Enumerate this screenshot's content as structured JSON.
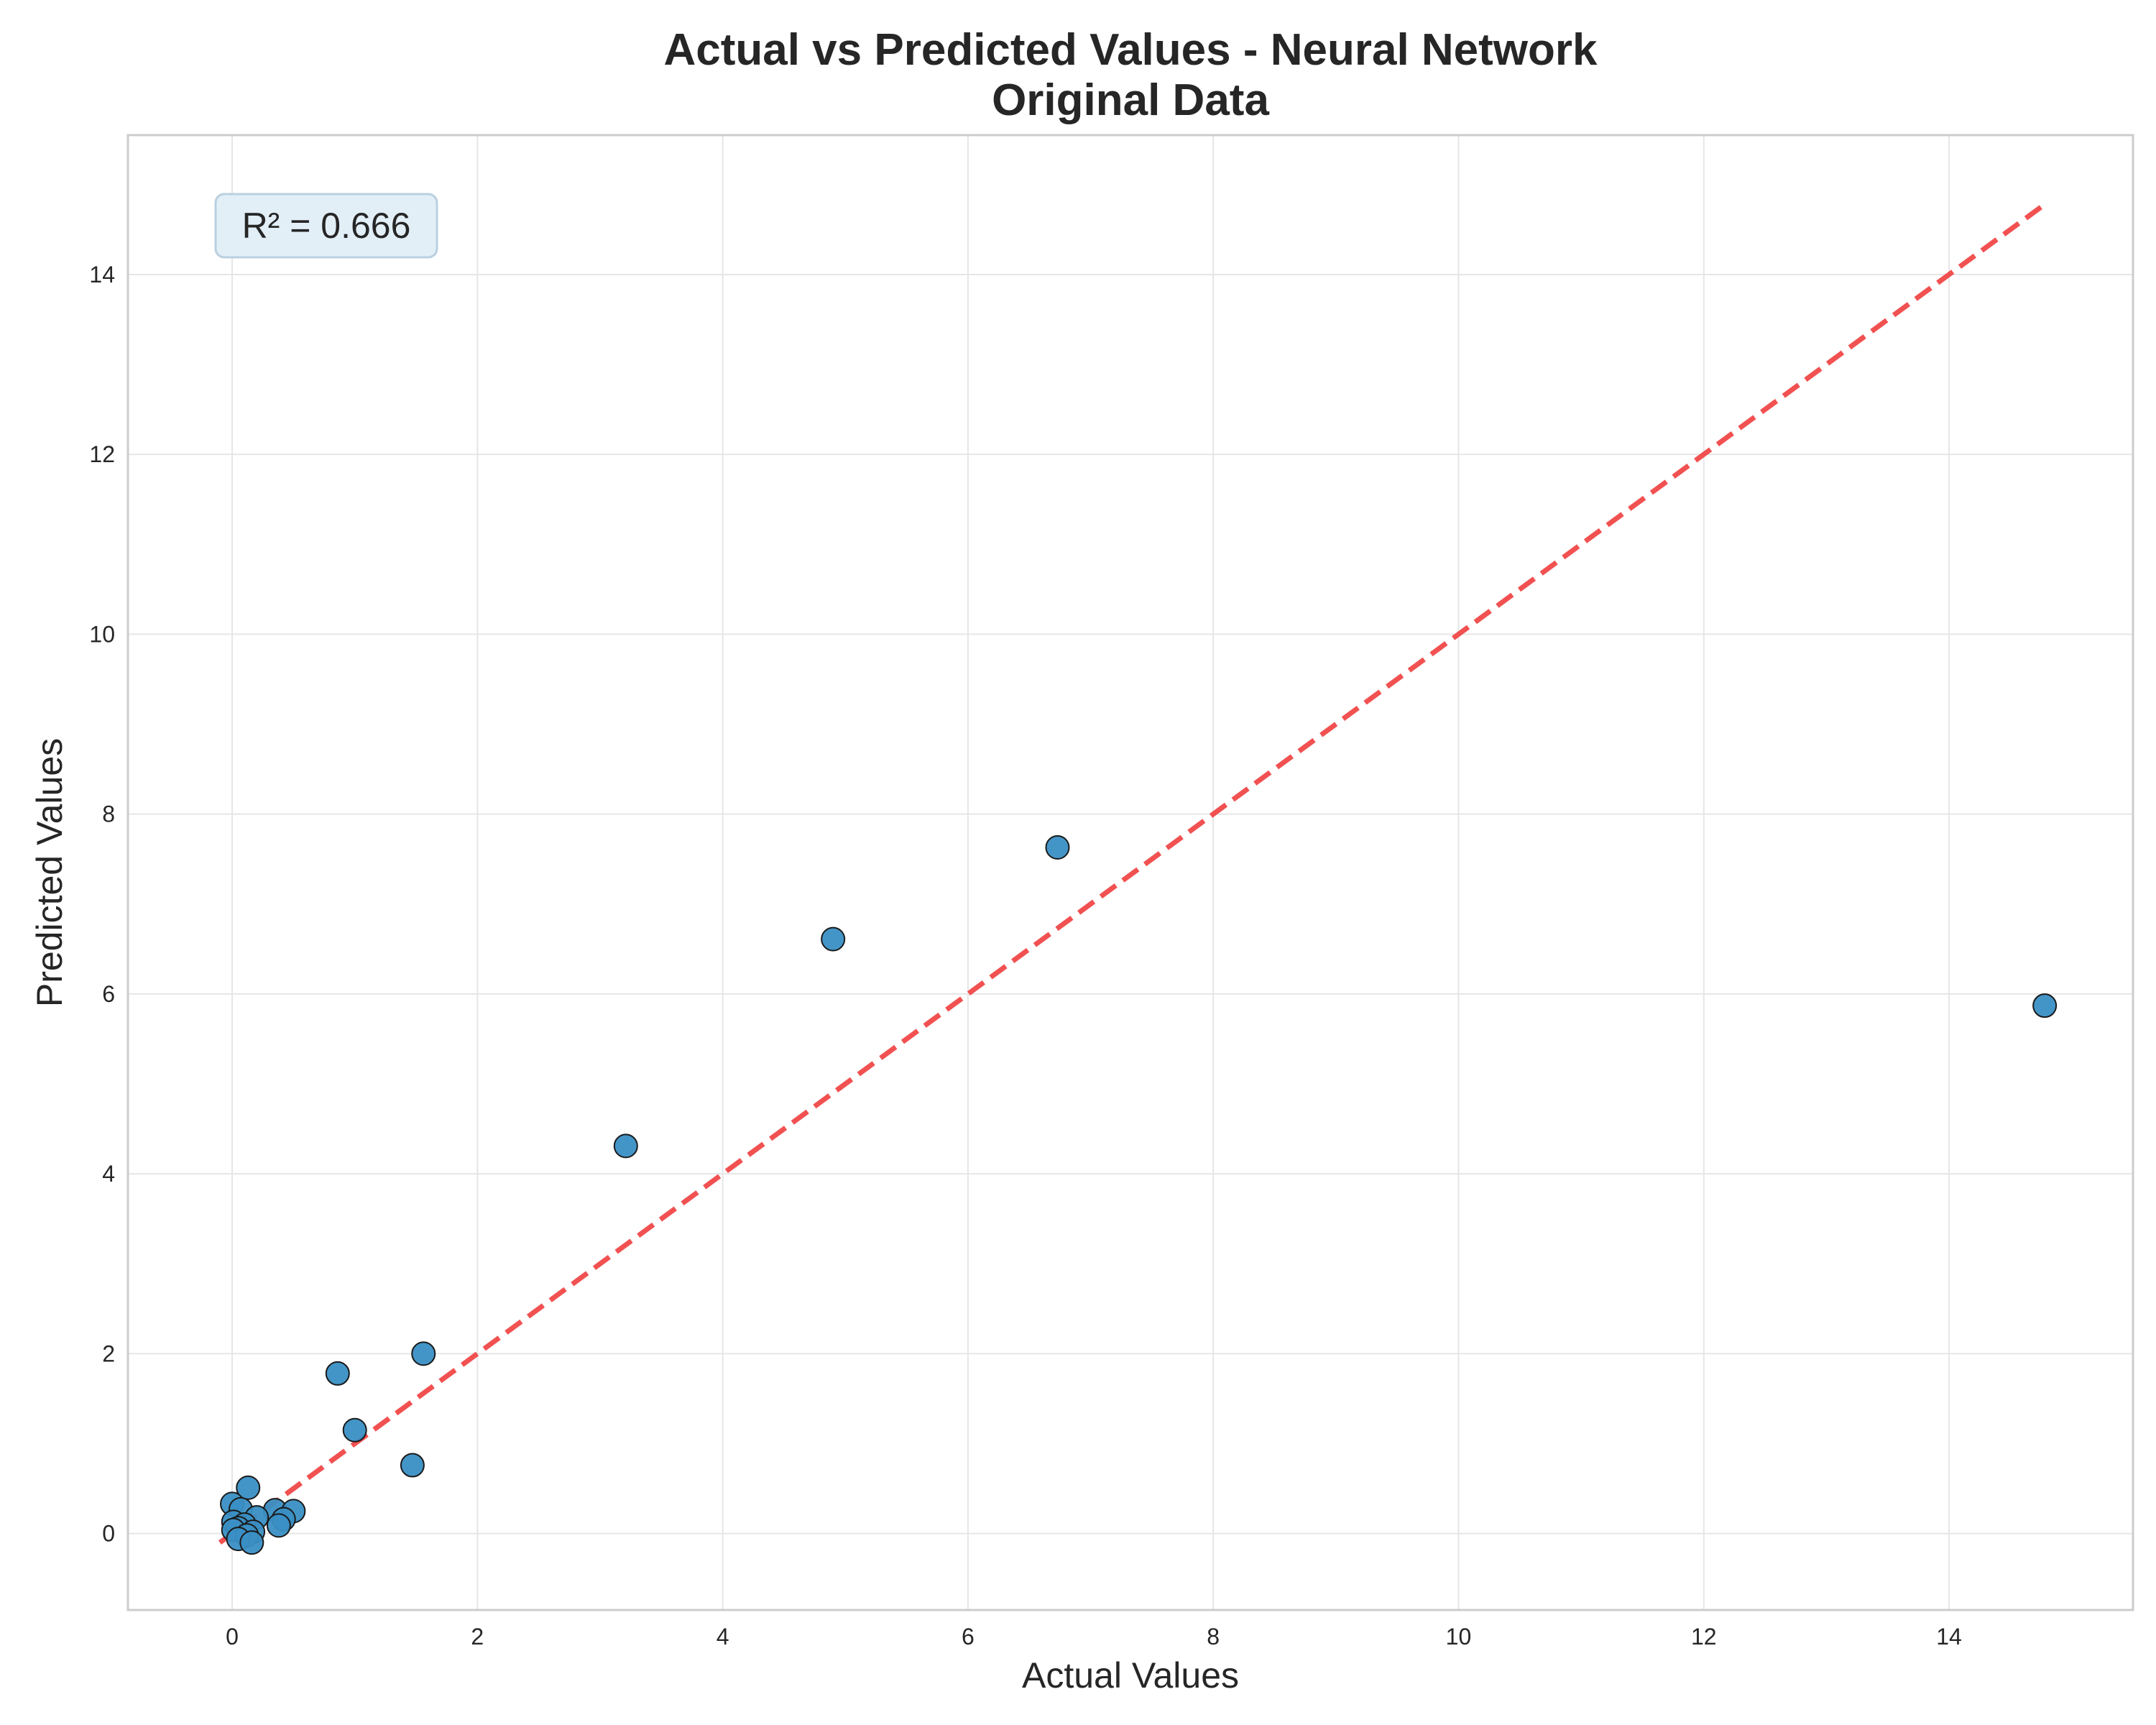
{
  "chart_data": {
    "type": "scatter",
    "title": "Actual vs Predicted Values - Neural Network",
    "subtitle": "Original Data",
    "xlabel": "Actual Values",
    "ylabel": "Predicted Values",
    "xlim": [
      -0.85,
      15.5
    ],
    "ylim": [
      -0.85,
      15.55
    ],
    "xticks": [
      0,
      2,
      4,
      6,
      8,
      10,
      12,
      14
    ],
    "yticks": [
      0,
      2,
      4,
      6,
      8,
      10,
      12,
      14
    ],
    "grid": true,
    "annotation": "R² = 0.666",
    "annotation_position": "top-left",
    "colors": {
      "points": "#3a8fc4",
      "point_edge": "#1a1a1a",
      "reference_line": "#f04848",
      "grid": "#e6e6e6",
      "spine": "#cccccc",
      "annotation_fill": "#e3eff7"
    },
    "reference_line": {
      "x": [
        -0.1,
        14.75
      ],
      "y": [
        -0.1,
        14.75
      ],
      "style": "dashed"
    },
    "points": [
      {
        "x": 14.78,
        "y": 5.87
      },
      {
        "x": 6.73,
        "y": 7.63
      },
      {
        "x": 4.9,
        "y": 6.61
      },
      {
        "x": 3.21,
        "y": 4.31
      },
      {
        "x": 1.56,
        "y": 2.0
      },
      {
        "x": 0.86,
        "y": 1.78
      },
      {
        "x": 1.0,
        "y": 1.15
      },
      {
        "x": 1.47,
        "y": 0.76
      },
      {
        "x": 0.13,
        "y": 0.51
      },
      {
        "x": 0.0,
        "y": 0.33
      },
      {
        "x": 0.07,
        "y": 0.27
      },
      {
        "x": 0.35,
        "y": 0.26
      },
      {
        "x": 0.5,
        "y": 0.25
      },
      {
        "x": 0.2,
        "y": 0.18
      },
      {
        "x": 0.42,
        "y": 0.16
      },
      {
        "x": 0.01,
        "y": 0.13
      },
      {
        "x": 0.1,
        "y": 0.1
      },
      {
        "x": 0.38,
        "y": 0.09
      },
      {
        "x": 0.05,
        "y": 0.06
      },
      {
        "x": 0.01,
        "y": 0.04
      },
      {
        "x": 0.17,
        "y": 0.02
      },
      {
        "x": 0.12,
        "y": -0.02
      },
      {
        "x": 0.05,
        "y": -0.06
      },
      {
        "x": 0.16,
        "y": -0.1
      }
    ]
  }
}
